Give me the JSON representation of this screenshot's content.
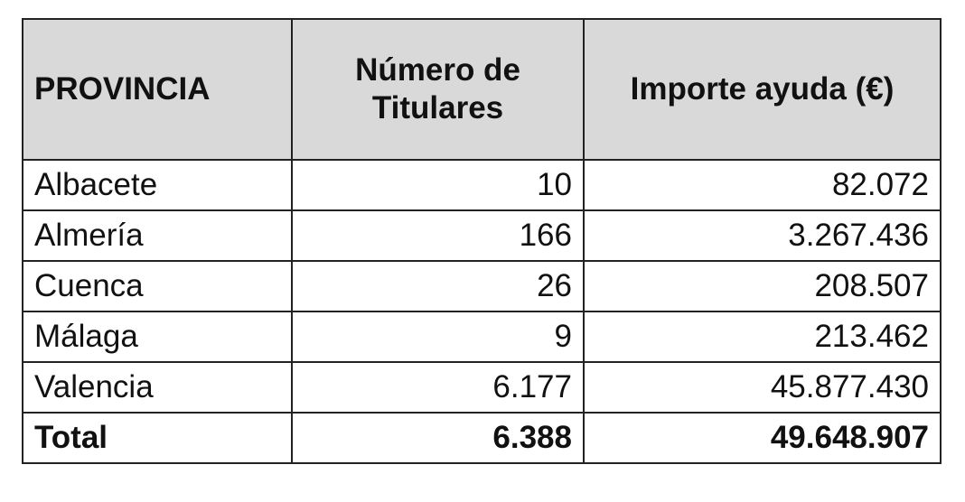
{
  "table": {
    "header": [
      "PROVINCIA",
      "Número de Titulares",
      "Importe ayuda (€)"
    ],
    "rows": [
      [
        "Albacete",
        "10",
        "82.072"
      ],
      [
        "Almería",
        "166",
        "3.267.436"
      ],
      [
        "Cuenca",
        "26",
        "208.507"
      ],
      [
        "Málaga",
        "9",
        "213.462"
      ],
      [
        "Valencia",
        "6.177",
        "45.877.430"
      ]
    ],
    "total": [
      "Total",
      "6.388",
      "49.648.907"
    ]
  }
}
